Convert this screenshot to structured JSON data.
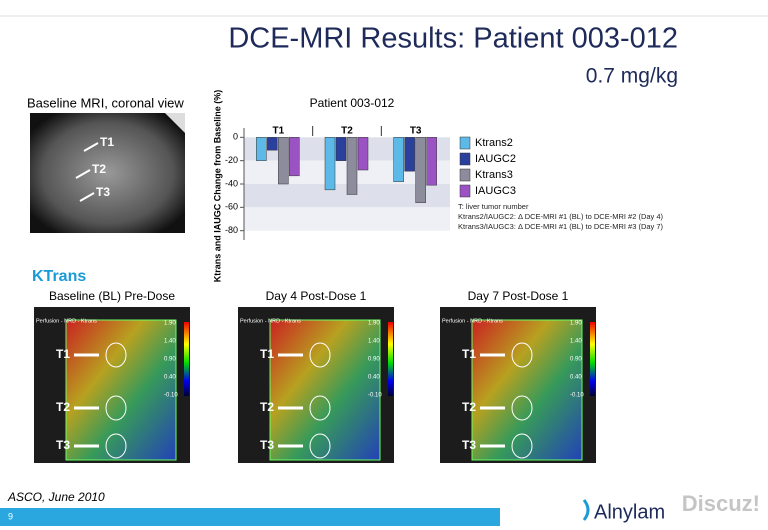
{
  "header": {
    "title": "DCE-MRI Results: Patient 003-012",
    "subtitle": "0.7 mg/kg"
  },
  "baseline_mri": {
    "caption": "Baseline MRI, coronal view",
    "labels": [
      "T1",
      "T2",
      "T3"
    ]
  },
  "chart_data": {
    "type": "bar",
    "title": "Patient 003-012",
    "y_label": "Ktrans and IAUGC Change from Baseline (%)",
    "categories": [
      "T1",
      "T2",
      "T3"
    ],
    "series": [
      {
        "name": "Ktrans2",
        "color": "#5cb9e8",
        "values": [
          -20,
          -45,
          -38
        ]
      },
      {
        "name": "IAUGC2",
        "color": "#2b3f9c",
        "values": [
          -11,
          -20,
          -29
        ]
      },
      {
        "name": "Ktrans3",
        "color": "#8c8c9c",
        "values": [
          -40,
          -49,
          -56
        ]
      },
      {
        "name": "IAUGC3",
        "color": "#9b52c2",
        "values": [
          -33,
          -28,
          -41
        ]
      }
    ],
    "ylim": [
      -88,
      8
    ],
    "yticks": [
      0,
      -20,
      -40,
      -60,
      -80
    ],
    "notes": [
      "T: liver tumor number",
      "Ktrans2/IAUGC2: Δ DCE-MRI #1 (BL) to DCE-MRI #2 (Day 4)",
      "Ktrans3/IAUGC3: Δ DCE-MRI #1 (BL) to DCE-MRI #3 (Day 7)"
    ]
  },
  "ktrans": {
    "heading": "KTrans",
    "panels": [
      {
        "title": "Baseline (BL) Pre-Dose",
        "header": "Perfusion - NRD - Ktrans",
        "labels": [
          "T1",
          "T2",
          "T3"
        ],
        "scale": [
          "1.90",
          "1.40",
          "0.90",
          "0.40",
          "-0.10"
        ]
      },
      {
        "title": "Day 4 Post-Dose 1",
        "header": "Perfusion - NRD - Ktrans",
        "labels": [
          "T1",
          "T2",
          "T3"
        ],
        "scale": [
          "1.90",
          "1.40",
          "0.90",
          "0.40",
          "-0.10"
        ]
      },
      {
        "title": "Day 7 Post-Dose 1",
        "header": "Perfusion - NRD - Ktrans",
        "labels": [
          "T1",
          "T2",
          "T3"
        ],
        "scale": [
          "1.90",
          "1.40",
          "0.90",
          "0.40",
          "-0.10"
        ]
      }
    ]
  },
  "footer": {
    "source": "ASCO, June 2010",
    "page": "9",
    "logo": "Alnylam",
    "watermark": "Discuz!"
  }
}
